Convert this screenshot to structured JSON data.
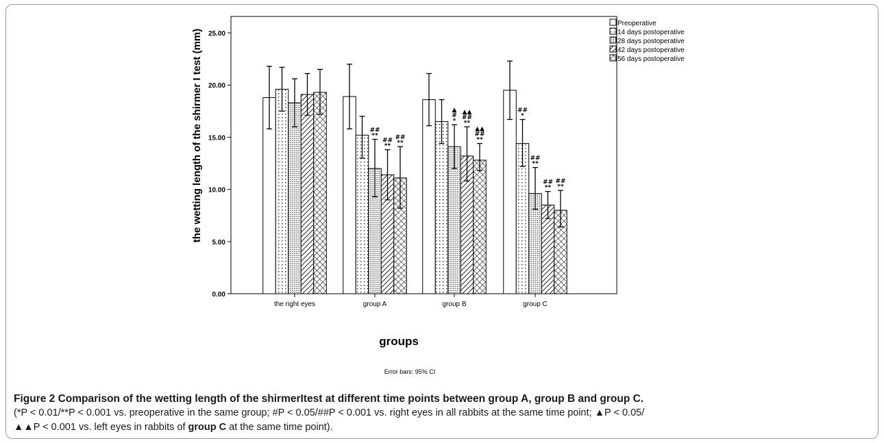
{
  "chart_data": {
    "type": "bar",
    "ylabel": "the wetting length of the shirmer I test (mm)",
    "xlabel": "groups",
    "ylim": [
      0,
      25
    ],
    "yticks": [
      "0.00",
      "5.00",
      "10.00",
      "15.00",
      "20.00",
      "25.00"
    ],
    "categories": [
      "the right eyes",
      "group A",
      "group B",
      "group C"
    ],
    "series": [
      {
        "name": "Preoperative",
        "pattern": "plain",
        "values": [
          18.8,
          18.9,
          18.6,
          19.5
        ],
        "err_low": [
          15.8,
          15.8,
          16.1,
          16.7
        ],
        "err_high": [
          21.8,
          22.0,
          21.1,
          22.3
        ]
      },
      {
        "name": "14 days postoperative",
        "pattern": "dots-sparse",
        "values": [
          19.6,
          15.2,
          16.5,
          14.4
        ],
        "err_low": [
          17.5,
          13.0,
          14.4,
          12.2
        ],
        "err_high": [
          21.7,
          17.0,
          18.6,
          16.7
        ]
      },
      {
        "name": "28 days postoperative",
        "pattern": "dots-dense",
        "values": [
          18.3,
          12.0,
          14.1,
          9.6
        ],
        "err_low": [
          16.0,
          9.3,
          12.0,
          8.1
        ],
        "err_high": [
          20.6,
          14.8,
          16.2,
          12.1
        ]
      },
      {
        "name": "42 days postoperative",
        "pattern": "hatch",
        "values": [
          19.1,
          11.4,
          13.2,
          8.5
        ],
        "err_low": [
          17.1,
          9.0,
          10.8,
          7.2
        ],
        "err_high": [
          21.1,
          13.8,
          16.0,
          9.8
        ]
      },
      {
        "name": "56 days postoperative",
        "pattern": "crosshatch",
        "values": [
          19.3,
          11.1,
          12.8,
          8.0
        ],
        "err_low": [
          17.2,
          8.2,
          11.8,
          6.4
        ],
        "err_high": [
          21.5,
          14.1,
          14.4,
          9.9
        ]
      }
    ],
    "annotations": [
      {
        "category": 1,
        "series": 2,
        "lines": [
          "##",
          "**"
        ]
      },
      {
        "category": 1,
        "series": 3,
        "lines": [
          "##",
          "**"
        ]
      },
      {
        "category": 1,
        "series": 4,
        "lines": [
          "##",
          "**"
        ]
      },
      {
        "category": 2,
        "series": 2,
        "lines": [
          "▲",
          "#",
          "*"
        ]
      },
      {
        "category": 2,
        "series": 3,
        "lines": [
          "▲▲",
          "##",
          "**"
        ]
      },
      {
        "category": 2,
        "series": 4,
        "lines": [
          "▲▲",
          "##",
          "**"
        ]
      },
      {
        "category": 3,
        "series": 1,
        "lines": [
          "##",
          "*"
        ]
      },
      {
        "category": 3,
        "series": 2,
        "lines": [
          "##",
          "**"
        ]
      },
      {
        "category": 3,
        "series": 3,
        "lines": [
          "##",
          "**"
        ]
      },
      {
        "category": 3,
        "series": 4,
        "lines": [
          "##",
          "**"
        ]
      }
    ],
    "footnote": "Error bars: 95% CI",
    "legend_position": "top-right"
  },
  "caption": {
    "title": "Figure 2 Comparison of the wetting length of the shirmerItest at different time points between group A, group B and group C.",
    "line2": "(*P < 0.01/**P < 0.001 vs. preoperative in the same group; #P < 0.05/##P < 0.001 vs. right eyes in all rabbits at the same time point; ▲P < 0.05/",
    "line3_a": "▲▲P < 0.001 vs. left eyes in rabbits of ",
    "line3_b": "group C",
    "line3_c": " at the same time point)."
  }
}
